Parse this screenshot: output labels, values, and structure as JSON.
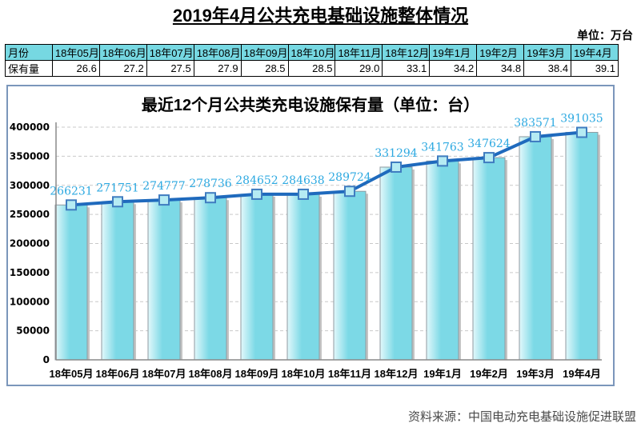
{
  "page": {
    "title": "2019年4月公共充电基础设施整体情况",
    "unit_note": "单位：万台",
    "source": "资料来源：中国电动充电基础设施促进联盟"
  },
  "table": {
    "row1_header": "月份",
    "row2_header": "保有量",
    "months": [
      "18年05月",
      "18年06月",
      "18年07月",
      "18年08月",
      "18年09月",
      "18年10月",
      "18年11月",
      "18年12月",
      "19年1月",
      "19年2月",
      "19年3月",
      "19年4月"
    ],
    "values": [
      "26.6",
      "27.2",
      "27.5",
      "27.9",
      "28.5",
      "28.5",
      "29.0",
      "33.1",
      "34.2",
      "34.8",
      "38.4",
      "39.1"
    ]
  },
  "chart_data": {
    "type": "bar",
    "line_overlay": true,
    "title": "最近12个月公共类充电设施保有量（单位：台）",
    "categories": [
      "18年05月",
      "18年06月",
      "18年07月",
      "18年08月",
      "18年09月",
      "18年10月",
      "18年11月",
      "18年12月",
      "19年1月",
      "19年2月",
      "19年3月",
      "19年4月"
    ],
    "values": [
      266231,
      271751,
      274777,
      278736,
      284652,
      284638,
      289724,
      331294,
      341763,
      347624,
      383571,
      391035
    ],
    "xlabel": "",
    "ylabel": "",
    "ylim": [
      0,
      400000
    ],
    "ytick_step": 50000,
    "grid": "horizontal-dashed",
    "legend": "none"
  },
  "colors": {
    "bar_fill": "#7cd9e6",
    "bar_fill_light": "#e2f8fb",
    "bar_border": "#8f9aa0",
    "bar_shadow": "#c4c4c4",
    "line": "#1f6abd",
    "marker_fill": "#b5ebf3",
    "marker_border": "#3f7cc0",
    "data_label": "#2da9e1",
    "table_header_bg": "#76d8e2",
    "chart_border": "#7b96bb",
    "grid_line": "#c9c9c9",
    "axis_line": "#8a8a8a",
    "source_text": "#4a4a4a"
  }
}
